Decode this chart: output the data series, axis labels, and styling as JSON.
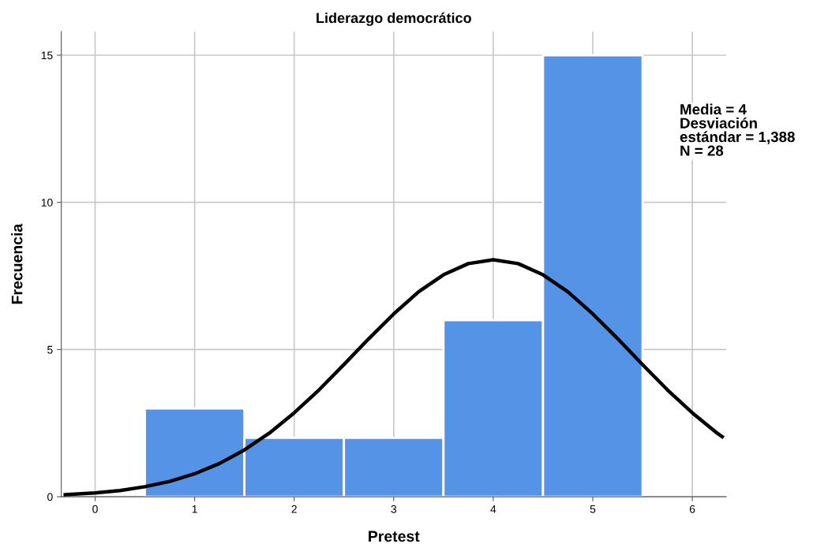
{
  "chart_data": {
    "type": "histogram",
    "title": "Liderazgo democrático",
    "xlabel": "Pretest",
    "ylabel": "Frecuencia",
    "series": [
      {
        "color": "#5593e6",
        "bins": [
          0.5,
          1.5,
          2.5,
          3.5,
          4.5,
          5.5
        ],
        "values": [
          3,
          2,
          2,
          6,
          15
        ]
      },
      {
        "type": "line",
        "color": "#000000",
        "x": [
          -0.3,
          0,
          0.25,
          0.5,
          0.75,
          1,
          1.25,
          1.5,
          1.75,
          2,
          2.25,
          2.5,
          2.75,
          3,
          3.25,
          3.5,
          3.75,
          4,
          4.25,
          4.5,
          4.75,
          5,
          5.25,
          5.5,
          5.75,
          6,
          6.25,
          6.3
        ],
        "values": [
          0.07,
          0.13,
          0.21,
          0.34,
          0.52,
          0.78,
          1.13,
          1.59,
          2.16,
          2.85,
          3.63,
          4.49,
          5.37,
          6.21,
          6.96,
          7.54,
          7.92,
          8.05,
          7.92,
          7.54,
          6.96,
          6.21,
          5.37,
          4.49,
          3.63,
          2.85,
          2.16,
          2.04
        ]
      }
    ],
    "xlim": [
      -0.34,
      6.34
    ],
    "ylim": [
      0,
      15.8
    ],
    "xticks": [
      0,
      1,
      2,
      3,
      4,
      5,
      6
    ],
    "yticks": [
      0,
      5,
      10,
      15
    ],
    "grid": true,
    "legend": false,
    "annotations": [
      "Media = 4\nDesviación\nestándar = 1,388\nN = 28"
    ]
  }
}
